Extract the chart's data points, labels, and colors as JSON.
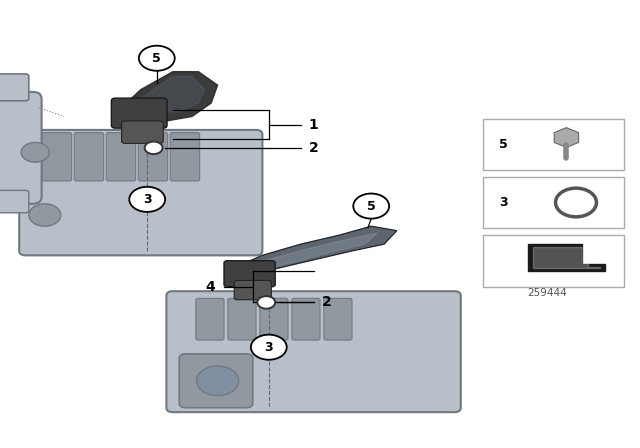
{
  "bg_color": "#ffffff",
  "part_number": "259444",
  "line_color": "#000000",
  "cc_light": "#b8bfc8",
  "cc_mid": "#9098a0",
  "cc_dark": "#707880",
  "hose_dark": "#2a2a2a",
  "hose_mid": "#505860",
  "legend_edge": "#aaaaaa"
}
